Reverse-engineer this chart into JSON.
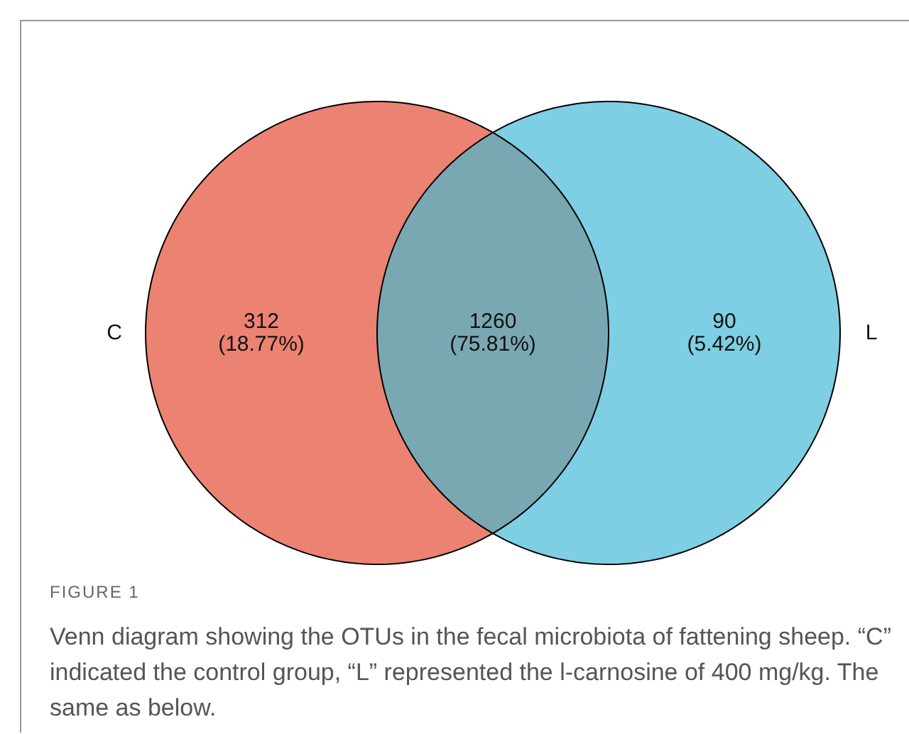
{
  "chart_data": {
    "type": "other",
    "title": "FIGURE 1",
    "categories": [
      "C",
      null,
      "L"
    ],
    "values": [
      312,
      1260,
      90
    ],
    "data_labels": true,
    "colors": [
      "#ec8272",
      "#79a8b3",
      "#7ecfe3"
    ],
    "annotations": [
      "(18.77%)",
      "(75.81%)",
      "(5.42%)",
      "Venn diagram showing the OTUs in the fecal microbiota of fattening sheep. “C” indicated the control group, “L” represented the l-carnosine of 400 mg/kg. The same as below."
    ]
  }
}
